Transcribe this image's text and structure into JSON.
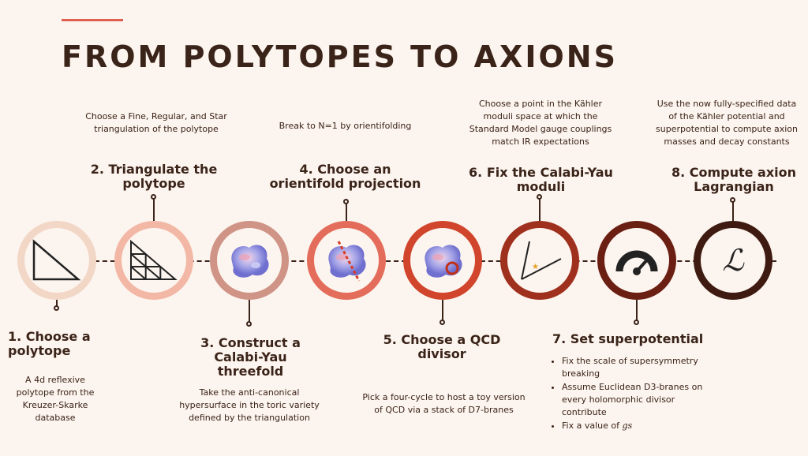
{
  "header": {
    "title": "FROM POLYTOPES TO AXIONS"
  },
  "colors": {
    "accent": "#e0604f",
    "text": "#3a2318",
    "background": "#fcf4ee"
  },
  "steps": [
    {
      "title": "1. Choose a\npolytope",
      "desc": "A 4d reflexive\npolytope from the\nKreuzer-Skarke\ndatabase",
      "icon": "right-triangle-icon",
      "ring": "#f2d6c6"
    },
    {
      "title": "2. Triangulate the\npolytope",
      "desc": "Choose a Fine, Regular, and Star\ntriangulation of the polytope",
      "icon": "triangulated-triangle-icon",
      "ring": "#f3b8a5"
    },
    {
      "title": "3. Construct a\nCalabi-Yau\nthreefold",
      "desc": "Take the anti-canonical\nhypersurface in the toric variety\ndefined by the triangulation",
      "icon": "calabi-yau-surface-icon",
      "ring": "#cf9486"
    },
    {
      "title": "4. Choose an\norientifold projection",
      "desc": "Break to N=1 by orientifolding",
      "icon": "orientifold-surface-icon",
      "ring": "#e36d5a"
    },
    {
      "title": "5. Choose a QCD\ndivisor",
      "desc": "Pick a four-cycle to host a toy version\nof QCD via a stack of D7-branes",
      "icon": "qcd-divisor-surface-icon",
      "ring": "#d0452c"
    },
    {
      "title": "6. Fix the Calabi-Yau\nmoduli",
      "desc": "Choose a point in the Kähler\nmoduli space at which the\nStandard Model gauge couplings\nmatch IR expectations",
      "icon": "kahler-cone-icon",
      "ring": "#a0301e"
    },
    {
      "title": "7. Set superpotential",
      "bullets": [
        "Fix the scale of supersymmetry breaking",
        "Assume Euclidean D3-branes on every holomorphic divisor contribute",
        "Fix a value of "
      ],
      "gs_symbol": "gs",
      "icon": "gauge-icon",
      "ring": "#6b1f12"
    },
    {
      "title": "8. Compute axion\nLagrangian",
      "desc": "Use the now fully-specified data\nof the Kähler potential and\nsuperpotential to compute axion\nmasses and decay constants",
      "icon": "lagrangian-icon",
      "ring": "#3e1a10"
    }
  ],
  "lagrangian_symbol": "ℒ"
}
